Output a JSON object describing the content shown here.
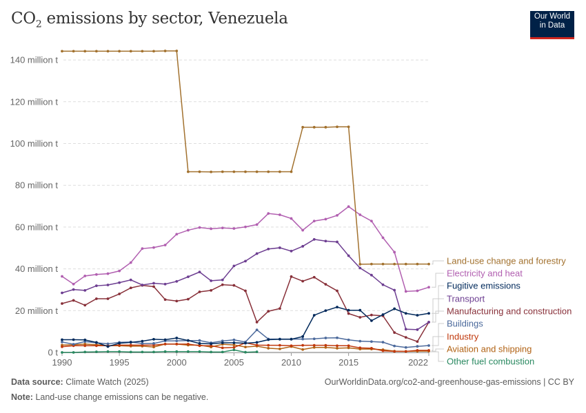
{
  "title_prefix": "CO",
  "title_sub": "2",
  "title_rest": " emissions by sector, Venezuela",
  "logo": {
    "line1": "Our World",
    "line2": "in Data"
  },
  "footer": {
    "source_label": "Data source:",
    "source": "Climate Watch (2025)",
    "url": "OurWorldinData.org/co2-and-greenhouse-gas-emissions | CC BY",
    "note_label": "Note:",
    "note": "Land-use change emissions can be negative."
  },
  "chart_data": {
    "type": "line",
    "title": "CO₂ emissions by sector, Venezuela",
    "x": [
      1990,
      1991,
      1992,
      1993,
      1994,
      1995,
      1996,
      1997,
      1998,
      1999,
      2000,
      2001,
      2002,
      2003,
      2004,
      2005,
      2006,
      2007,
      2008,
      2009,
      2010,
      2011,
      2012,
      2013,
      2014,
      2015,
      2016,
      2017,
      2018,
      2019,
      2020,
      2021,
      2022
    ],
    "xticks": [
      1990,
      1995,
      2000,
      2005,
      2010,
      2015,
      2022
    ],
    "yticks": [
      0,
      20,
      40,
      60,
      80,
      100,
      120,
      140
    ],
    "ytick_labels": [
      "0 t",
      "20 million t",
      "40 million t",
      "60 million t",
      "80 million t",
      "100 million t",
      "120 million t",
      "140 million t"
    ],
    "ylim": [
      0,
      145
    ],
    "grid": "horizontal dashed",
    "legend": "right, line-end labels",
    "unit": "million t",
    "series": [
      {
        "name": "Land-use change and forestry",
        "color": "#a2712e",
        "values": [
          144.2,
          144.2,
          144.2,
          144.2,
          144.2,
          144.2,
          144.2,
          144.2,
          144.2,
          144.3,
          144.3,
          86.5,
          86.5,
          86.4,
          86.5,
          86.5,
          86.5,
          86.5,
          86.5,
          86.5,
          86.5,
          107.8,
          107.8,
          107.8,
          108,
          108,
          42.2,
          42.3,
          42.3,
          42.3,
          42.3,
          42.3,
          42.3
        ]
      },
      {
        "name": "Electricity and heat",
        "color": "#b15fb0",
        "values": [
          36.4,
          32.7,
          36.6,
          37.3,
          37.7,
          39.0,
          43.0,
          49.7,
          50.2,
          51.4,
          56.6,
          58.5,
          59.8,
          59.2,
          59.6,
          59.3,
          60.1,
          61.2,
          66.5,
          65.9,
          64.1,
          58.5,
          62.9,
          63.8,
          65.6,
          69.8,
          65.9,
          62.9,
          54.9,
          48.0,
          29.2,
          29.5,
          31.2
        ]
      },
      {
        "name": "Fugitive emissions",
        "color": "#00295b",
        "values": [
          6.1,
          6.1,
          6.0,
          4.8,
          2.8,
          4.4,
          4.8,
          5.4,
          6.3,
          6.1,
          6.9,
          5.7,
          4.3,
          4.1,
          4.6,
          4.6,
          4.4,
          4.8,
          6.1,
          6.3,
          6.3,
          7.6,
          17.8,
          20.0,
          21.7,
          20.2,
          20.2,
          15.2,
          18.1,
          20.9,
          18.7,
          17.8,
          18.7
        ]
      },
      {
        "name": "Transport",
        "color": "#6d3e91",
        "values": [
          28.5,
          30.1,
          29.7,
          31.9,
          32.3,
          33.4,
          34.7,
          32.3,
          33.1,
          32.7,
          34.0,
          36.2,
          38.5,
          34.3,
          34.7,
          41.4,
          43.7,
          47.3,
          49.5,
          50.1,
          48.5,
          50.8,
          54.1,
          53.3,
          52.9,
          46.3,
          40.4,
          37.0,
          32.4,
          29.8,
          11.1,
          10.9,
          14.5
        ]
      },
      {
        "name": "Manufacturing and construction",
        "color": "#883039",
        "values": [
          23.4,
          24.9,
          22.6,
          25.7,
          25.7,
          28.0,
          30.9,
          32.1,
          31.5,
          25.3,
          24.6,
          25.5,
          29.0,
          29.7,
          32.4,
          32.1,
          29.5,
          14.5,
          19.7,
          21.0,
          36.3,
          34.1,
          36.0,
          32.6,
          29.5,
          18.6,
          16.8,
          17.9,
          17.5,
          9.5,
          7.2,
          5.2,
          14.5
        ]
      },
      {
        "name": "Buildings",
        "color": "#4c6a9c",
        "values": [
          5.0,
          3.9,
          5.2,
          4.6,
          4.1,
          4.8,
          5.0,
          4.3,
          4.3,
          5.5,
          5.5,
          5.7,
          5.7,
          4.6,
          5.5,
          6.0,
          5.0,
          10.8,
          6.4,
          6.4,
          6.4,
          6.4,
          6.5,
          6.9,
          7.0,
          6.0,
          5.4,
          5.2,
          4.9,
          3.1,
          2.4,
          2.9,
          3.3
        ]
      },
      {
        "name": "Industry",
        "color": "#c0380c",
        "values": [
          2.7,
          3.2,
          3.2,
          3.2,
          3.2,
          3.5,
          3.5,
          3.5,
          3.5,
          4.0,
          4.0,
          4.0,
          3.2,
          3.2,
          2.2,
          2.4,
          4.6,
          3.5,
          3.4,
          3.4,
          3.2,
          3.4,
          3.4,
          3.4,
          3.2,
          3.2,
          2.2,
          2.0,
          0.8,
          0.5,
          0.5,
          1.0,
          1.0
        ]
      },
      {
        "name": "Aviation and shipping",
        "color": "#b16214",
        "values": [
          3.5,
          3.7,
          4.0,
          3.7,
          3.2,
          3.2,
          3.0,
          3.0,
          2.6,
          4.0,
          4.0,
          3.5,
          3.5,
          2.6,
          3.9,
          3.6,
          2.6,
          3.0,
          2.0,
          1.7,
          2.8,
          1.4,
          2.4,
          2.4,
          2.0,
          2.2,
          1.6,
          1.6,
          1.3,
          0.6,
          0.5,
          0.6,
          0.6
        ]
      },
      {
        "name": "Other fuel combustion",
        "color": "#2a8961",
        "values": [
          0,
          0,
          0.2,
          0.3,
          0.4,
          0.4,
          0.2,
          0.2,
          0.2,
          0.4,
          0.4,
          0.4,
          0.4,
          0.2,
          0.2,
          1.2,
          0.1,
          0.3,
          null,
          null,
          null,
          null,
          null,
          null,
          null,
          null,
          null,
          null,
          null,
          null,
          null,
          null,
          null
        ]
      }
    ]
  }
}
